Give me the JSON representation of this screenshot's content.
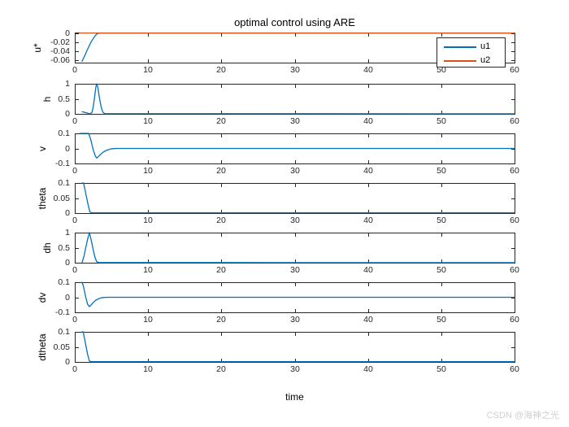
{
  "title": "optimal control using ARE",
  "xlabel": "time",
  "watermark": "CSDN @海神之光",
  "colors": {
    "axis": "#262626",
    "blue": "#0072BD",
    "orange": "#D95319",
    "background": "#ffffff",
    "watermark": "#cfcfcf"
  },
  "legend": {
    "items": [
      {
        "label": "u1",
        "color": "#0072BD"
      },
      {
        "label": "u2",
        "color": "#D95319"
      }
    ]
  },
  "xlim": [
    0,
    60
  ],
  "xticks": [
    0,
    10,
    20,
    30,
    40,
    50,
    60
  ],
  "xtick_labels": [
    "0",
    "10",
    "20",
    "30",
    "40",
    "50",
    "60"
  ],
  "chart_data": [
    {
      "type": "line",
      "ylabel": "u*",
      "ylim": [
        -0.066,
        0.001
      ],
      "yticks": [
        0,
        -0.02,
        -0.04,
        -0.06
      ],
      "ytick_labels": [
        "0",
        "-0.02",
        "-0.04",
        "-0.06"
      ],
      "series": [
        {
          "name": "u1",
          "color": "#0072BD",
          "points": [
            [
              1,
              -0.063
            ],
            [
              1.2,
              -0.056
            ],
            [
              1.45,
              -0.047
            ],
            [
              1.7,
              -0.038
            ],
            [
              1.95,
              -0.029
            ],
            [
              2.2,
              -0.021
            ],
            [
              2.45,
              -0.014
            ],
            [
              2.7,
              -0.008
            ],
            [
              2.95,
              -0.003
            ],
            [
              3.2,
              -0.0005
            ],
            [
              3.5,
              0
            ],
            [
              60,
              0
            ]
          ]
        },
        {
          "name": "u2",
          "color": "#D95319",
          "points": [
            [
              0.7,
              0
            ],
            [
              60,
              0
            ]
          ]
        }
      ]
    },
    {
      "type": "line",
      "ylabel": "h",
      "ylim": [
        0,
        1
      ],
      "yticks": [
        1,
        0.5,
        0
      ],
      "ytick_labels": [
        "1",
        "0.5",
        "0"
      ],
      "series": [
        {
          "name": "h",
          "color": "#0072BD",
          "points": [
            [
              1,
              0.07
            ],
            [
              1.4,
              0.045
            ],
            [
              1.8,
              0.018
            ],
            [
              2.1,
              0.004
            ],
            [
              2.35,
              0.05
            ],
            [
              2.55,
              0.28
            ],
            [
              2.75,
              0.65
            ],
            [
              2.9,
              0.92
            ],
            [
              3,
              1
            ],
            [
              3.15,
              0.88
            ],
            [
              3.35,
              0.55
            ],
            [
              3.6,
              0.22
            ],
            [
              3.85,
              0.05
            ],
            [
              4.1,
              0.008
            ],
            [
              60,
              0.004
            ]
          ]
        }
      ]
    },
    {
      "type": "line",
      "ylabel": "v",
      "ylim": [
        -0.1,
        0.1
      ],
      "yticks": [
        0.1,
        0,
        -0.1
      ],
      "ytick_labels": [
        "0.1",
        "0",
        "-0.1"
      ],
      "series": [
        {
          "name": "v",
          "color": "#0072BD",
          "points": [
            [
              0.7,
              0.1
            ],
            [
              1.9,
              0.1
            ],
            [
              2.2,
              0.055
            ],
            [
              2.5,
              -0.005
            ],
            [
              2.8,
              -0.05
            ],
            [
              3,
              -0.063
            ],
            [
              3.2,
              -0.055
            ],
            [
              3.5,
              -0.04
            ],
            [
              3.9,
              -0.024
            ],
            [
              4.3,
              -0.013
            ],
            [
              4.8,
              -0.005
            ],
            [
              5.3,
              -0.001
            ],
            [
              5.8,
              0
            ],
            [
              60,
              0
            ]
          ]
        }
      ]
    },
    {
      "type": "line",
      "ylabel": "theta",
      "ylim": [
        0,
        0.1
      ],
      "yticks": [
        0.1,
        0.05,
        0
      ],
      "ytick_labels": [
        "0.1",
        "0.05",
        "0"
      ],
      "series": [
        {
          "name": "theta",
          "color": "#0072BD",
          "points": [
            [
              1,
              0.1
            ],
            [
              1.2,
              0.1
            ],
            [
              1.5,
              0.065
            ],
            [
              1.8,
              0.03
            ],
            [
              2.05,
              0.004
            ],
            [
              2.3,
              0.001
            ],
            [
              60,
              0.001
            ]
          ]
        }
      ]
    },
    {
      "type": "line",
      "ylabel": "dh",
      "ylim": [
        0,
        1
      ],
      "yticks": [
        1,
        0.5,
        0
      ],
      "ytick_labels": [
        "1",
        "0.5",
        "0"
      ],
      "series": [
        {
          "name": "dh",
          "color": "#0072BD",
          "points": [
            [
              1,
              0.01
            ],
            [
              1.25,
              0.22
            ],
            [
              1.5,
              0.5
            ],
            [
              1.75,
              0.78
            ],
            [
              2,
              1
            ],
            [
              2.25,
              0.74
            ],
            [
              2.5,
              0.45
            ],
            [
              2.75,
              0.18
            ],
            [
              3,
              0.03
            ],
            [
              3.3,
              0.005
            ],
            [
              60,
              0.004
            ]
          ]
        }
      ]
    },
    {
      "type": "line",
      "ylabel": "dv",
      "ylim": [
        -0.1,
        0.1
      ],
      "yticks": [
        0.1,
        0,
        -0.1
      ],
      "ytick_labels": [
        "0.1",
        "0",
        "-0.1"
      ],
      "series": [
        {
          "name": "dv",
          "color": "#0072BD",
          "points": [
            [
              1,
              0.1
            ],
            [
              1.2,
              0.07
            ],
            [
              1.5,
              0
            ],
            [
              1.75,
              -0.047
            ],
            [
              2,
              -0.062
            ],
            [
              2.25,
              -0.05
            ],
            [
              2.5,
              -0.036
            ],
            [
              2.8,
              -0.022
            ],
            [
              3.2,
              -0.011
            ],
            [
              3.6,
              -0.004
            ],
            [
              4,
              -0.001
            ],
            [
              4.5,
              0
            ],
            [
              60,
              0
            ]
          ]
        }
      ]
    },
    {
      "type": "line",
      "ylabel": "dtheta",
      "ylim": [
        0,
        0.1
      ],
      "yticks": [
        0.1,
        0.05,
        0
      ],
      "ytick_labels": [
        "0.1",
        "0.05",
        "0"
      ],
      "series": [
        {
          "name": "dtheta",
          "color": "#0072BD",
          "points": [
            [
              1,
              0.1
            ],
            [
              1.15,
              0.1
            ],
            [
              1.45,
              0.062
            ],
            [
              1.75,
              0.025
            ],
            [
              2,
              0.003
            ],
            [
              2.3,
              0.001
            ],
            [
              60,
              0.001
            ]
          ]
        }
      ]
    }
  ]
}
